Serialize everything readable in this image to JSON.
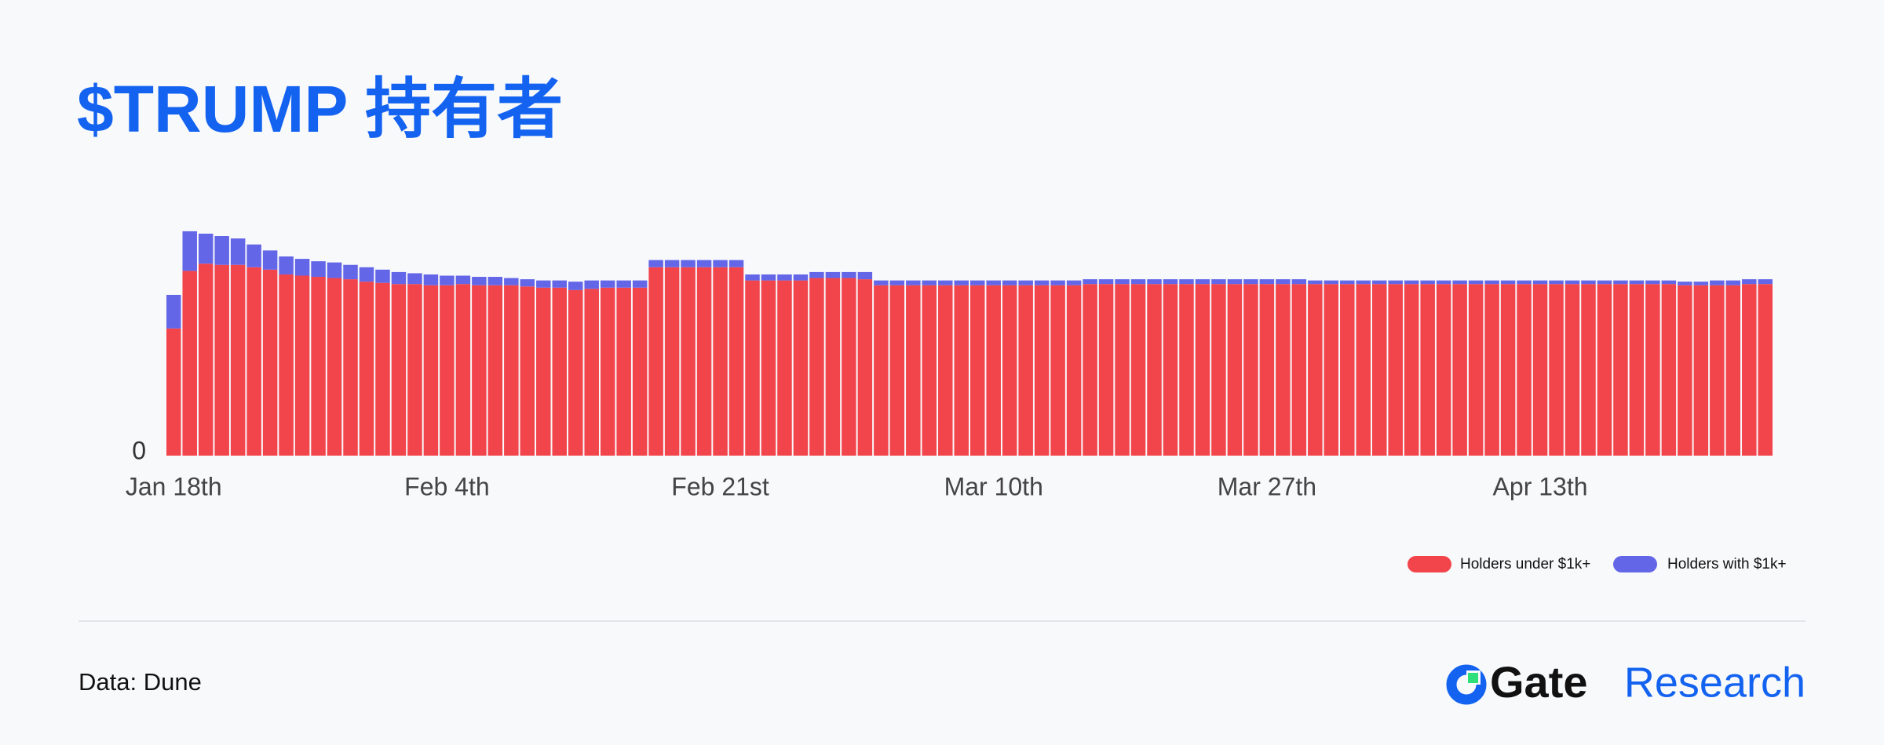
{
  "chart_data": {
    "type": "stacked-bar",
    "title": "$TRUMP 持有者",
    "categories": [
      "Jan 18th",
      null,
      null,
      null,
      null,
      null,
      null,
      null,
      null,
      null,
      null,
      null,
      null,
      null,
      null,
      null,
      null,
      "Feb 4th",
      null,
      null,
      null,
      null,
      null,
      null,
      null,
      null,
      null,
      null,
      null,
      null,
      null,
      null,
      null,
      null,
      "Feb 21st",
      null,
      null,
      null,
      null,
      null,
      null,
      null,
      null,
      null,
      null,
      null,
      null,
      null,
      null,
      null,
      null,
      "Mar 10th",
      null,
      null,
      null,
      null,
      null,
      null,
      null,
      null,
      null,
      null,
      null,
      null,
      null,
      null,
      null,
      null,
      "Mar 27th",
      null,
      null,
      null,
      null,
      null,
      null,
      null,
      null,
      null,
      null,
      null,
      null,
      null,
      null,
      null,
      null,
      "Apr 13th",
      null,
      null,
      null,
      null,
      null,
      null,
      null,
      null,
      null,
      null,
      null,
      null,
      null,
      null
    ],
    "series": [
      {
        "name": "Holders under $1k+",
        "color": "#f2444b",
        "values": [
          106,
          154,
          160,
          159,
          159,
          157,
          155,
          151,
          150,
          149,
          148,
          147,
          145,
          144,
          143,
          143,
          142,
          142,
          143,
          142,
          142,
          142,
          141,
          140,
          140,
          138,
          139,
          140,
          140,
          140,
          157,
          157,
          157,
          157,
          157,
          157,
          146,
          146,
          146,
          146,
          148,
          148,
          148,
          147,
          142,
          142,
          142,
          142,
          142,
          142,
          142,
          142,
          142,
          142,
          142,
          142,
          142,
          143,
          143,
          143,
          143,
          143,
          143,
          143,
          143,
          143,
          143,
          143,
          143,
          143,
          143,
          143,
          143,
          143,
          143,
          143,
          143,
          143,
          143,
          143,
          143,
          143,
          143,
          143,
          143,
          143,
          143,
          143,
          143,
          143,
          143,
          143,
          143,
          143,
          142,
          142,
          142,
          142,
          143,
          143
        ]
      },
      {
        "name": "Holders with $1k+",
        "color": "#6466e8",
        "values": [
          28,
          33,
          25,
          24,
          22,
          19,
          16,
          15,
          14,
          13,
          13,
          12,
          12,
          11,
          10,
          9,
          9,
          8,
          7,
          7,
          7,
          6,
          6,
          6,
          6,
          7,
          7,
          6,
          6,
          6,
          6,
          6,
          6,
          6,
          6,
          6,
          5,
          5,
          5,
          5,
          5,
          5,
          5,
          6,
          4,
          4,
          4,
          4,
          4,
          4,
          4,
          4,
          4,
          4,
          4,
          4,
          4,
          4,
          4,
          4,
          4,
          4,
          4,
          4,
          4,
          4,
          4,
          4,
          4,
          4,
          4,
          3,
          3,
          3,
          3,
          3,
          3,
          3,
          3,
          3,
          3,
          3,
          3,
          3,
          3,
          3,
          3,
          3,
          3,
          3,
          3,
          3,
          3,
          3,
          3,
          3,
          4,
          4,
          4,
          4
        ]
      }
    ],
    "ylim": [
      0,
      200
    ],
    "yticks": [
      0
    ],
    "grid": false,
    "legend": "bottom-right"
  },
  "footer": {
    "source": "Data: Dune",
    "brand": "Gate",
    "brand_suffix": "Research"
  }
}
